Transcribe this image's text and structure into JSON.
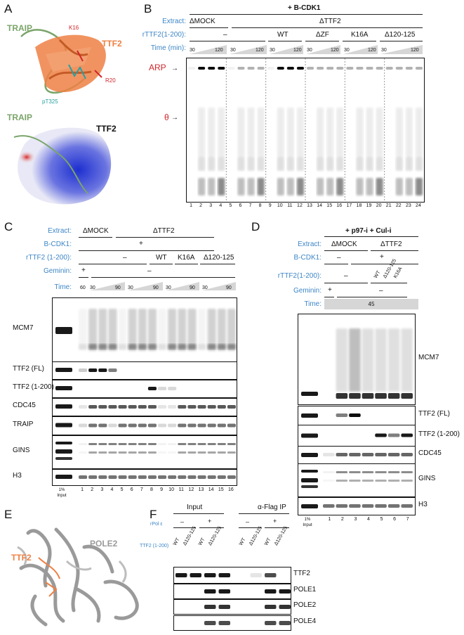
{
  "panels": {
    "A": {
      "label": "A",
      "traip_top": "TRAIP",
      "ttf2": "TTF2",
      "k16": "K16",
      "r20": "R20",
      "pt325": "pT325",
      "traip_bottom": "TRAIP",
      "ttf2_bottom": "TTF2"
    },
    "B": {
      "label": "B",
      "title": "+ B-CDK1",
      "extract_label": "Extract:",
      "extract_mock": "ΔMOCK",
      "extract_ttf2": "ΔTTF2",
      "rttf2_label": "rTTF2(1-200):",
      "rttf2_dash": "–",
      "rttf2_variants": [
        "WT",
        "ΔZF",
        "K16A",
        "Δ120-125"
      ],
      "time_label": "Time (min):",
      "time_start": "30",
      "time_end": "120",
      "arp": "ARP",
      "theta": "θ",
      "lanes": [
        "1",
        "2",
        "3",
        "4",
        "5",
        "6",
        "7",
        "8",
        "9",
        "10",
        "11",
        "12",
        "13",
        "14",
        "15",
        "16",
        "17",
        "18",
        "19",
        "20",
        "21",
        "22",
        "23",
        "24"
      ]
    },
    "C": {
      "label": "C",
      "extract_label": "Extract:",
      "extract_mock": "ΔMOCK",
      "extract_ttf2": "ΔTTF2",
      "bcdk_label": "B-CDK1:",
      "bcdk_plus": "+",
      "rttf2_label": "rTTF2 (1-200):",
      "rttf2_dash": "–",
      "rttf2_variants": [
        "WT",
        "K16A",
        "Δ120-125"
      ],
      "geminin_label": "Geminin:",
      "geminin_plus": "+",
      "geminin_dash": "–",
      "time_label": "Time:",
      "time_60": "60",
      "time_30": "30",
      "time_90": "90",
      "blots": [
        "MCM7",
        "TTF2 (FL)",
        "TTF2 (1-200)",
        "CDC45",
        "TRAIP",
        "GINS",
        "H3"
      ],
      "input": "1%\nInput",
      "input_a": "1%",
      "input_b": "Input",
      "lanes": [
        "1",
        "2",
        "3",
        "4",
        "5",
        "6",
        "7",
        "8",
        "9",
        "10",
        "11",
        "12",
        "13",
        "14",
        "15",
        "16"
      ]
    },
    "D": {
      "label": "D",
      "title": "+ p97-i + Cul-i",
      "extract_label": "Extract:",
      "extract_mock": "ΔMOCK",
      "extract_ttf2": "ΔTTF2",
      "bcdk_label": "B-CDK1:",
      "bcdk_dash": "–",
      "bcdk_plus": "+",
      "rttf2_label": "rTTF2(1-200):",
      "rttf2_dash": "–",
      "rttf2_variants": [
        "WT",
        "Δ120-125",
        "K16A"
      ],
      "geminin_label": "Geminin:",
      "geminin_plus": "+",
      "geminin_dash": "–",
      "time_label": "Time:",
      "time_value": "45",
      "blots": [
        "MCM7",
        "TTF2 (FL)",
        "TTF2 (1-200)",
        "CDC45",
        "GINS",
        "H3"
      ],
      "input_a": "1%",
      "input_b": "Input",
      "lanes": [
        "1",
        "2",
        "3",
        "4",
        "5",
        "6",
        "7"
      ]
    },
    "E": {
      "label": "E",
      "ttf2": "TTF2",
      "pole2": "POLE2"
    },
    "F": {
      "label": "F",
      "input": "Input",
      "ip": "α-Flag IP",
      "rpol_label": "rPol ε",
      "minus": "–",
      "plus": "+",
      "ttf2_label": "TTF2 (1-200)",
      "wt": "WT",
      "d120": "Δ120-125",
      "blots": [
        "TTF2",
        "POLE1",
        "POLE2",
        "POLE4"
      ]
    }
  },
  "colors": {
    "blue_label": "#3d86c6",
    "red_label": "#d1262b",
    "traip_green": "#7ba56a",
    "ttf2_orange": "#ee8044"
  }
}
